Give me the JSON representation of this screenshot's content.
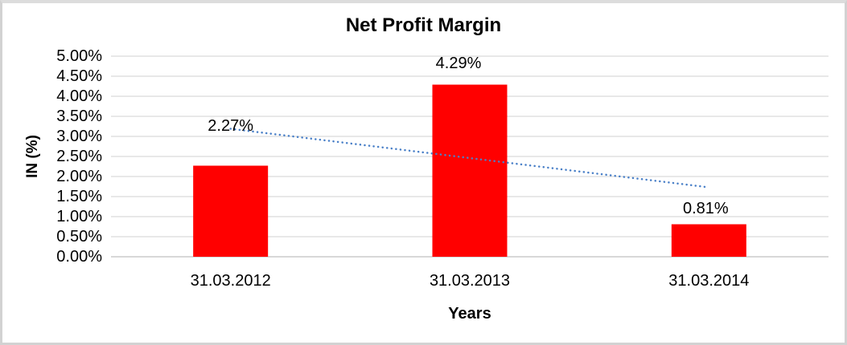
{
  "chart_data": {
    "type": "bar",
    "title": "Net Profit Margin",
    "xlabel": "Years",
    "ylabel": "IN (%)",
    "categories": [
      "31.03.2012",
      "31.03.2013",
      "31.03.2014"
    ],
    "values": [
      2.27,
      4.29,
      0.81
    ],
    "data_labels": [
      "2.27%",
      "4.29%",
      "0.81%"
    ],
    "ylim": [
      0,
      5
    ],
    "ytick_step": 0.5,
    "ytick_labels": [
      "0.00%",
      "0.50%",
      "1.00%",
      "1.50%",
      "2.00%",
      "2.50%",
      "3.00%",
      "3.50%",
      "4.00%",
      "4.50%",
      "5.00%"
    ],
    "grid": true,
    "legend": "none",
    "colors": {
      "bar": "#ff0000",
      "trendline": "#4a80c8",
      "gridline": "#d9d9d9",
      "axis_line": "#c0c0c0",
      "text": "#000000",
      "frame": "#d2d2d2"
    },
    "trendline": {
      "type": "linear",
      "style": "dotted",
      "start_value": 3.19,
      "end_value": 1.73
    }
  }
}
